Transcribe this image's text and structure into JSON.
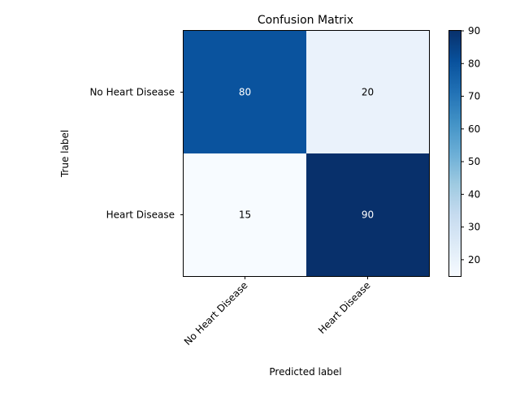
{
  "chart_data": {
    "type": "heatmap",
    "title": "Confusion Matrix",
    "xlabel": "Predicted label",
    "ylabel": "True label",
    "x_categories": [
      "No Heart Disease",
      "Heart Disease"
    ],
    "y_categories": [
      "No Heart Disease",
      "Heart Disease"
    ],
    "values": [
      [
        80,
        20
      ],
      [
        15,
        90
      ]
    ],
    "colormap": "Blues",
    "color_range": [
      15,
      90
    ],
    "colorbar": {
      "ticks": [
        20,
        30,
        40,
        50,
        60,
        70,
        80,
        90
      ],
      "tick_labels": [
        "20",
        "30",
        "40",
        "50",
        "60",
        "70",
        "80",
        "90"
      ]
    },
    "cell_text_colors": {
      "dark": "#ffffff",
      "light": "#000000"
    },
    "colors": {
      "axes": "#000000",
      "background": "#ffffff"
    }
  }
}
